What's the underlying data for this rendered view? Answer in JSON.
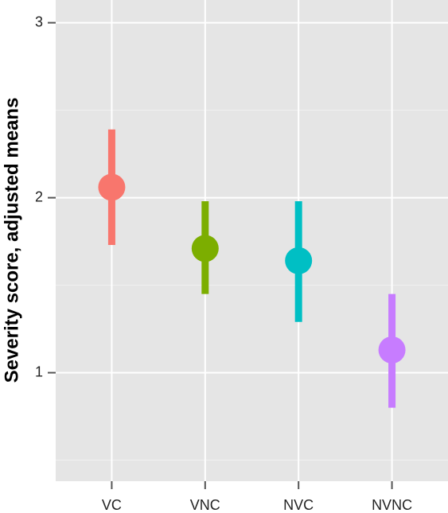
{
  "chart_data": {
    "type": "pointrange",
    "y_label": "Severity score, adjusted means",
    "categories": [
      "VC",
      "VNC",
      "NVC",
      "NVNC"
    ],
    "values": [
      2.06,
      1.71,
      1.64,
      1.13
    ],
    "lower": [
      1.73,
      1.45,
      1.29,
      0.8
    ],
    "upper": [
      2.39,
      1.98,
      1.98,
      1.45
    ],
    "colors": [
      "#f8766d",
      "#7cae00",
      "#00bfc4",
      "#c77cff"
    ],
    "ylim": [
      0.38,
      3.13
    ],
    "yticks": [
      1,
      2,
      3
    ],
    "y_minor_grid": [
      0.5,
      1.5,
      2.5
    ],
    "grid": true
  }
}
